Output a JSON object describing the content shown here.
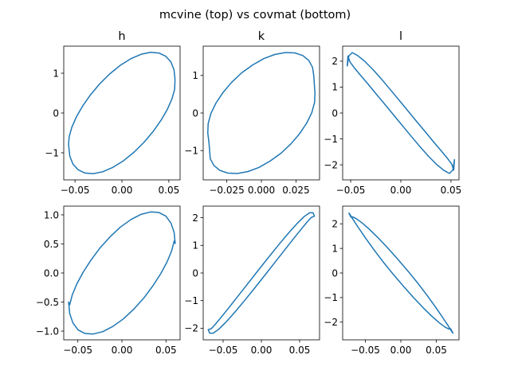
{
  "figure": {
    "suptitle": "mcvine (top) vs covmat (bottom)"
  },
  "chart_data": [
    {
      "type": "line",
      "title": "h",
      "xlabel": "",
      "ylabel": "",
      "xlim": [
        -0.062,
        0.062
      ],
      "ylim": [
        -1.68,
        1.68
      ],
      "xticks": [
        -0.05,
        0.0,
        0.05
      ],
      "xticklabels": [
        "−0.05",
        "0.00",
        "0.05"
      ],
      "yticks": [
        -1,
        0,
        1
      ],
      "yticklabels": [
        "−1",
        "0",
        "1"
      ],
      "grid": false,
      "color": "#1f77b4",
      "series": [
        {
          "x": [
            0.0566,
            0.0555,
            0.0522,
            0.0467,
            0.0394,
            0.0305,
            0.0205,
            0.0096,
            -0.0017,
            -0.0129,
            -0.0236,
            -0.0333,
            -0.0417,
            -0.0485,
            -0.0534,
            -0.0562,
            -0.0569,
            -0.0555,
            -0.0522,
            -0.0467,
            -0.0394,
            -0.0305,
            -0.0205,
            -0.0096,
            0.0017,
            0.0129,
            0.0236,
            0.0333,
            0.0417,
            0.0485,
            0.0534,
            0.0562,
            0.0566
          ],
          "y": [
            0.85,
            1.088,
            1.284,
            1.426,
            1.508,
            1.525,
            1.477,
            1.366,
            1.199,
            0.985,
            0.735,
            0.463,
            0.182,
            -0.096,
            -0.359,
            -0.594,
            -0.789,
            -1.088,
            -1.284,
            -1.426,
            -1.508,
            -1.525,
            -1.477,
            -1.366,
            -1.199,
            -0.985,
            -0.735,
            -0.463,
            -0.182,
            0.096,
            0.359,
            0.594,
            0.85
          ]
        }
      ]
    },
    {
      "type": "line",
      "title": "k",
      "xlabel": "",
      "ylabel": "",
      "xlim": [
        -0.042,
        0.042
      ],
      "ylim": [
        -1.78,
        1.78
      ],
      "xticks": [
        -0.025,
        0.0,
        0.025
      ],
      "xticklabels": [
        "−0.025",
        "0.000",
        "0.025"
      ],
      "yticks": [
        -1,
        0,
        1
      ],
      "yticklabels": [
        "−1",
        "0",
        "1"
      ],
      "grid": false,
      "color": "#1f77b4",
      "series": [
        {
          "x": [
            0.0378,
            0.0369,
            0.0342,
            0.0299,
            0.0242,
            0.0174,
            0.0098,
            0.0018,
            -0.0063,
            -0.0142,
            -0.0214,
            -0.0276,
            -0.0327,
            -0.0364,
            -0.0384,
            -0.0387,
            -0.0378,
            -0.0369,
            -0.0342,
            -0.0299,
            -0.0242,
            -0.0174,
            -0.0098,
            -0.0018,
            0.0063,
            0.0142,
            0.0214,
            0.0276,
            0.0327,
            0.0364,
            0.0384,
            0.0387,
            0.0378
          ],
          "y": [
            1.0,
            1.22,
            1.4,
            1.53,
            1.6,
            1.61,
            1.56,
            1.45,
            1.28,
            1.07,
            0.82,
            0.55,
            0.27,
            -0.01,
            -0.28,
            -0.53,
            -0.8,
            -1.22,
            -1.4,
            -1.53,
            -1.6,
            -1.61,
            -1.56,
            -1.45,
            -1.28,
            -1.07,
            -0.82,
            -0.55,
            -0.27,
            0.01,
            0.28,
            0.53,
            1.0
          ]
        }
      ]
    },
    {
      "type": "line",
      "title": "l",
      "xlabel": "",
      "ylabel": "",
      "xlim": [
        -0.058,
        0.058
      ],
      "ylim": [
        -2.58,
        2.58
      ],
      "xticks": [
        -0.05,
        0.0,
        0.05
      ],
      "xticklabels": [
        "−0.05",
        "0.00",
        "0.05"
      ],
      "yticks": [
        -2,
        -1,
        0,
        1,
        2
      ],
      "yticklabels": [
        "−2",
        "−1",
        "0",
        "1",
        "2"
      ],
      "grid": false,
      "color": "#1f77b4",
      "series": [
        {
          "x": [
            -0.0535,
            -0.0519,
            -0.0485,
            -0.0432,
            -0.0361,
            -0.0276,
            -0.018,
            -0.0076,
            0.0031,
            0.0137,
            0.0238,
            0.0328,
            0.0405,
            0.0465,
            0.0507,
            0.0527,
            0.0535,
            0.0519,
            0.0485,
            0.0432,
            0.0361,
            0.0276,
            0.018,
            0.0076,
            -0.0031,
            -0.0137,
            -0.0238,
            -0.0328,
            -0.0405,
            -0.0465,
            -0.0507,
            -0.0527,
            -0.0535
          ],
          "y": [
            1.8,
            2.2,
            2.33,
            2.22,
            2.0,
            1.67,
            1.25,
            0.77,
            0.27,
            -0.23,
            -0.7,
            -1.12,
            -1.47,
            -1.75,
            -1.97,
            -2.2,
            -1.8,
            -2.2,
            -2.33,
            -2.22,
            -2.0,
            -1.67,
            -1.25,
            -0.77,
            -0.27,
            0.23,
            0.7,
            1.12,
            1.47,
            1.75,
            1.97,
            2.2,
            1.8
          ]
        }
      ]
    },
    {
      "type": "line",
      "title": "",
      "xlabel": "",
      "ylabel": "",
      "xlim": [
        -0.066,
        0.066
      ],
      "ylim": [
        -1.15,
        1.15
      ],
      "xticks": [
        -0.05,
        0.0,
        0.05
      ],
      "xticklabels": [
        "−0.05",
        "0.00",
        "0.05"
      ],
      "yticks": [
        -1.0,
        -0.5,
        0.0,
        0.5,
        1.0
      ],
      "yticklabels": [
        "−1.0",
        "−0.5",
        "0.0",
        "0.5",
        "1.0"
      ],
      "grid": false,
      "color": "#1f77b4",
      "series": [
        {
          "x": [
            0.0605,
            0.0592,
            0.0556,
            0.0497,
            0.042,
            0.0326,
            0.0219,
            0.0103,
            -0.0017,
            -0.0136,
            -0.0249,
            -0.0352,
            -0.0441,
            -0.0512,
            -0.0564,
            -0.0593,
            -0.0605,
            -0.0592,
            -0.0556,
            -0.0497,
            -0.042,
            -0.0326,
            -0.0219,
            -0.0103,
            0.0017,
            0.0136,
            0.0249,
            0.0352,
            0.0441,
            0.0512,
            0.0564,
            0.0593,
            0.0605
          ],
          "y": [
            0.5,
            0.7,
            0.86,
            0.98,
            1.04,
            1.05,
            1.01,
            0.92,
            0.79,
            0.62,
            0.43,
            0.22,
            0.01,
            -0.19,
            -0.38,
            -0.55,
            -0.5,
            -0.7,
            -0.86,
            -0.98,
            -1.04,
            -1.05,
            -1.01,
            -0.92,
            -0.79,
            -0.62,
            -0.43,
            -0.22,
            -0.01,
            0.19,
            0.38,
            0.55,
            0.5
          ]
        }
      ]
    },
    {
      "type": "line",
      "title": "",
      "xlabel": "",
      "ylabel": "",
      "xlim": [
        -0.076,
        0.076
      ],
      "ylim": [
        -2.42,
        2.42
      ],
      "xticks": [
        -0.05,
        0.0,
        0.05
      ],
      "xticklabels": [
        "−0.05",
        "0.00",
        "0.05"
      ],
      "yticks": [
        -2,
        -1,
        0,
        1,
        2
      ],
      "yticklabels": [
        "−2",
        "−1",
        "0",
        "1",
        "2"
      ],
      "grid": false,
      "color": "#1f77b4",
      "series": [
        {
          "x": [
            0.0695,
            0.0675,
            0.0629,
            0.0558,
            0.0463,
            0.035,
            0.0223,
            0.0086,
            -0.0054,
            -0.019,
            -0.0318,
            -0.0431,
            -0.0525,
            -0.0596,
            -0.0641,
            -0.0658,
            -0.0695,
            -0.0675,
            -0.0629,
            -0.0558,
            -0.0463,
            -0.035,
            -0.0223,
            -0.0086,
            0.0054,
            0.019,
            0.0318,
            0.0431,
            0.0525,
            0.0596,
            0.0641,
            0.0658,
            0.0695
          ],
          "y": [
            2.05,
            2.18,
            2.18,
            2.04,
            1.78,
            1.43,
            1.01,
            0.54,
            0.05,
            -0.43,
            -0.88,
            -1.28,
            -1.6,
            -1.84,
            -1.98,
            -2.02,
            -2.05,
            -2.18,
            -2.18,
            -2.04,
            -1.78,
            -1.43,
            -1.01,
            -0.54,
            -0.05,
            0.43,
            0.88,
            1.28,
            1.6,
            1.84,
            1.98,
            2.02,
            2.05
          ]
        }
      ]
    },
    {
      "type": "line",
      "title": "",
      "xlabel": "",
      "ylabel": "",
      "xlim": [
        -0.082,
        0.082
      ],
      "ylim": [
        -2.72,
        2.72
      ],
      "xticks": [
        -0.05,
        0.0,
        0.05
      ],
      "xticklabels": [
        "−0.05",
        "0.00",
        "0.05"
      ],
      "yticks": [
        -2,
        -1,
        0,
        1,
        2
      ],
      "yticklabels": [
        "−2",
        "−1",
        "0",
        "1",
        "2"
      ],
      "grid": false,
      "color": "#1f77b4",
      "series": [
        {
          "x": [
            -0.0735,
            -0.0715,
            -0.0668,
            -0.0594,
            -0.0497,
            -0.038,
            -0.0249,
            -0.0108,
            0.004,
            0.0185,
            0.032,
            0.0441,
            0.0543,
            0.0623,
            0.0677,
            0.0703,
            0.0735,
            0.0715,
            0.0668,
            0.0594,
            0.0497,
            0.038,
            0.0249,
            0.0108,
            -0.004,
            -0.0185,
            -0.032,
            -0.0441,
            -0.0543,
            -0.0623,
            -0.0677,
            -0.0703,
            -0.0735
          ],
          "y": [
            2.45,
            2.37,
            2.15,
            1.83,
            1.42,
            0.95,
            0.45,
            -0.05,
            -0.55,
            -1.02,
            -1.43,
            -1.77,
            -2.03,
            -2.2,
            -2.28,
            -2.27,
            -2.45,
            -2.37,
            -2.15,
            -1.83,
            -1.42,
            -0.95,
            -0.45,
            0.05,
            0.55,
            1.02,
            1.43,
            1.77,
            2.03,
            2.2,
            2.28,
            2.27,
            2.45
          ]
        }
      ]
    }
  ]
}
